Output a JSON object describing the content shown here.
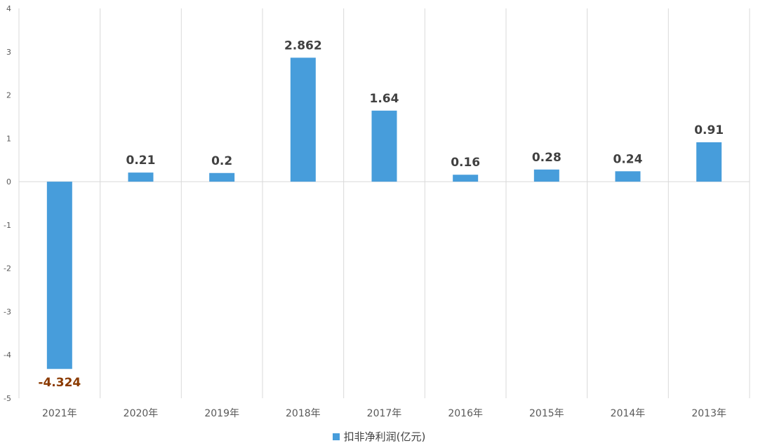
{
  "chart_data": {
    "type": "bar",
    "categories": [
      "2021年",
      "2020年",
      "2019年",
      "2018年",
      "2017年",
      "2016年",
      "2015年",
      "2014年",
      "2013年"
    ],
    "series": [
      {
        "name": "扣非净利润(亿元)",
        "values": [
          -4.324,
          0.21,
          0.2,
          2.862,
          1.64,
          0.16,
          0.28,
          0.24,
          0.91
        ],
        "value_labels": [
          "-4.324",
          "0.21",
          "0.2",
          "2.862",
          "1.64",
          "0.16",
          "0.28",
          "0.24",
          "0.91"
        ]
      }
    ],
    "title": "",
    "xlabel": "",
    "ylabel": "",
    "ylim": [
      -5,
      4
    ],
    "yticks": [
      4,
      3,
      2,
      1,
      0,
      -1,
      -2,
      -3,
      -4,
      -5
    ],
    "grid": "vertical",
    "legend_position": "bottom",
    "colors": {
      "bar": "#479DDB",
      "positive_label": "#404040",
      "negative_label": "#8B3A00",
      "gridline": "#D9D9D9"
    }
  }
}
